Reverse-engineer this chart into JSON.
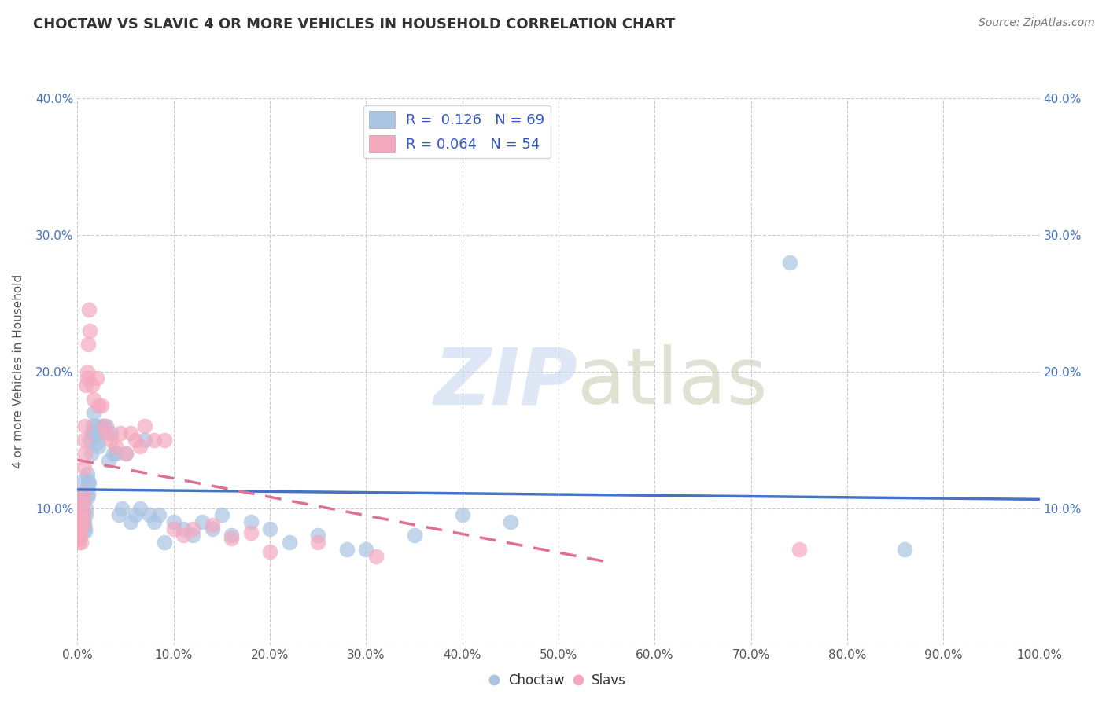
{
  "title": "CHOCTAW VS SLAVIC 4 OR MORE VEHICLES IN HOUSEHOLD CORRELATION CHART",
  "source": "Source: ZipAtlas.com",
  "ylabel": "4 or more Vehicles in Household",
  "xlim": [
    0,
    1.0
  ],
  "ylim": [
    0,
    0.4
  ],
  "xticks": [
    0.0,
    0.1,
    0.2,
    0.3,
    0.4,
    0.5,
    0.6,
    0.7,
    0.8,
    0.9,
    1.0
  ],
  "yticks": [
    0.0,
    0.1,
    0.2,
    0.3,
    0.4
  ],
  "xtick_labels": [
    "0.0%",
    "10.0%",
    "20.0%",
    "30.0%",
    "40.0%",
    "50.0%",
    "60.0%",
    "70.0%",
    "80.0%",
    "90.0%",
    "100.0%"
  ],
  "ytick_labels_left": [
    "",
    "10.0%",
    "20.0%",
    "30.0%",
    "40.0%"
  ],
  "ytick_labels_right": [
    "",
    "10.0%",
    "20.0%",
    "30.0%",
    "40.0%"
  ],
  "choctaw_color": "#aac4e2",
  "slavic_color": "#f4a8be",
  "choctaw_line_color": "#4472c4",
  "slavic_line_color": "#e07090",
  "choctaw_R": 0.126,
  "choctaw_N": 69,
  "slavic_R": 0.064,
  "slavic_N": 54,
  "legend_text_color": "#3355cc",
  "choctaw_x": [
    0.002,
    0.003,
    0.003,
    0.004,
    0.004,
    0.005,
    0.005,
    0.005,
    0.006,
    0.006,
    0.007,
    0.007,
    0.008,
    0.008,
    0.009,
    0.009,
    0.01,
    0.01,
    0.01,
    0.011,
    0.011,
    0.012,
    0.013,
    0.014,
    0.015,
    0.016,
    0.017,
    0.018,
    0.019,
    0.02,
    0.021,
    0.022,
    0.023,
    0.025,
    0.027,
    0.03,
    0.032,
    0.035,
    0.037,
    0.04,
    0.043,
    0.046,
    0.05,
    0.055,
    0.06,
    0.065,
    0.07,
    0.075,
    0.08,
    0.085,
    0.09,
    0.1,
    0.11,
    0.12,
    0.13,
    0.14,
    0.15,
    0.16,
    0.18,
    0.2,
    0.22,
    0.25,
    0.28,
    0.3,
    0.35,
    0.4,
    0.45,
    0.74,
    0.86
  ],
  "choctaw_y": [
    0.1,
    0.11,
    0.095,
    0.09,
    0.085,
    0.12,
    0.11,
    0.105,
    0.095,
    0.095,
    0.09,
    0.088,
    0.085,
    0.083,
    0.1,
    0.095,
    0.125,
    0.115,
    0.108,
    0.12,
    0.11,
    0.118,
    0.15,
    0.14,
    0.155,
    0.16,
    0.17,
    0.155,
    0.16,
    0.155,
    0.148,
    0.145,
    0.155,
    0.16,
    0.16,
    0.16,
    0.135,
    0.155,
    0.14,
    0.14,
    0.095,
    0.1,
    0.14,
    0.09,
    0.095,
    0.1,
    0.15,
    0.095,
    0.09,
    0.095,
    0.075,
    0.09,
    0.085,
    0.08,
    0.09,
    0.085,
    0.095,
    0.08,
    0.09,
    0.085,
    0.075,
    0.08,
    0.07,
    0.07,
    0.08,
    0.095,
    0.09,
    0.28,
    0.07
  ],
  "slavic_x": [
    0.001,
    0.001,
    0.002,
    0.002,
    0.002,
    0.003,
    0.003,
    0.003,
    0.004,
    0.004,
    0.004,
    0.005,
    0.005,
    0.005,
    0.005,
    0.006,
    0.006,
    0.007,
    0.007,
    0.008,
    0.008,
    0.009,
    0.01,
    0.01,
    0.011,
    0.012,
    0.013,
    0.015,
    0.017,
    0.02,
    0.022,
    0.025,
    0.028,
    0.03,
    0.035,
    0.04,
    0.045,
    0.05,
    0.055,
    0.06,
    0.065,
    0.07,
    0.08,
    0.09,
    0.1,
    0.11,
    0.12,
    0.14,
    0.16,
    0.18,
    0.2,
    0.25,
    0.31,
    0.75
  ],
  "slavic_y": [
    0.08,
    0.075,
    0.085,
    0.082,
    0.078,
    0.095,
    0.088,
    0.08,
    0.092,
    0.087,
    0.075,
    0.1,
    0.095,
    0.092,
    0.088,
    0.11,
    0.105,
    0.15,
    0.13,
    0.16,
    0.14,
    0.19,
    0.195,
    0.2,
    0.22,
    0.245,
    0.23,
    0.19,
    0.18,
    0.195,
    0.175,
    0.175,
    0.16,
    0.155,
    0.15,
    0.145,
    0.155,
    0.14,
    0.155,
    0.15,
    0.145,
    0.16,
    0.15,
    0.15,
    0.085,
    0.08,
    0.085,
    0.088,
    0.078,
    0.082,
    0.068,
    0.075,
    0.065,
    0.07
  ]
}
